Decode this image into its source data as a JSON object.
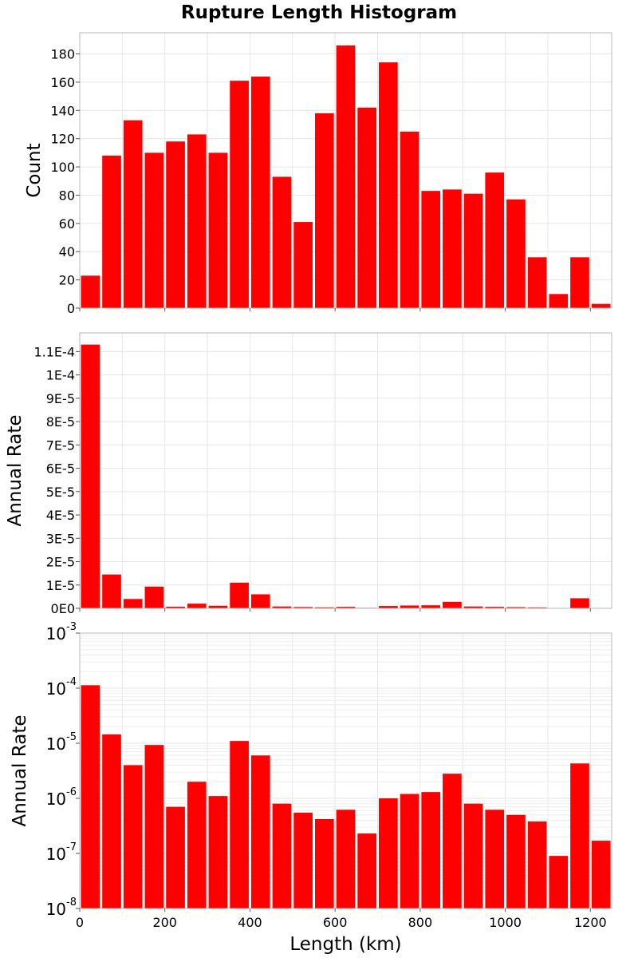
{
  "chart_data": [
    {
      "type": "bar",
      "title": "Rupture Length Histogram",
      "xlabel": "",
      "ylabel": "Count",
      "scale": "linear",
      "xlim": [
        0,
        1250
      ],
      "ylim": [
        0,
        195
      ],
      "bin_width": 50,
      "x": [
        25,
        75,
        125,
        175,
        225,
        275,
        325,
        375,
        425,
        475,
        525,
        575,
        625,
        675,
        725,
        775,
        825,
        875,
        925,
        975,
        1025,
        1075,
        1125,
        1175,
        1225
      ],
      "values": [
        23,
        108,
        133,
        110,
        118,
        123,
        110,
        161,
        164,
        93,
        61,
        138,
        186,
        142,
        174,
        125,
        83,
        84,
        81,
        96,
        77,
        36,
        10,
        36,
        3
      ],
      "color": "#ff0000",
      "y_ticks": [
        {
          "value": 0,
          "label": "0"
        },
        {
          "value": 20,
          "label": "20"
        },
        {
          "value": 40,
          "label": "40"
        },
        {
          "value": 60,
          "label": "60"
        },
        {
          "value": 80,
          "label": "80"
        },
        {
          "value": 100,
          "label": "100"
        },
        {
          "value": 120,
          "label": "120"
        },
        {
          "value": 140,
          "label": "140"
        },
        {
          "value": 160,
          "label": "160"
        },
        {
          "value": 180,
          "label": "180"
        }
      ]
    },
    {
      "type": "bar",
      "xlabel": "",
      "ylabel": "Annual Rate",
      "scale": "linear",
      "xlim": [
        0,
        1250
      ],
      "ylim": [
        0,
        0.000118
      ],
      "bin_width": 50,
      "x": [
        25,
        75,
        125,
        175,
        225,
        275,
        325,
        375,
        425,
        475,
        525,
        575,
        625,
        675,
        725,
        775,
        825,
        875,
        925,
        975,
        1025,
        1075,
        1125,
        1175,
        1225
      ],
      "values": [
        0.000113,
        1.45e-05,
        4e-06,
        9.3e-06,
        7e-07,
        2e-06,
        1.1e-06,
        1.1e-05,
        6e-06,
        8e-07,
        5.5e-07,
        4.2e-07,
        6.2e-07,
        2.3e-07,
        1e-06,
        1.2e-06,
        1.3e-06,
        2.8e-06,
        8e-07,
        6.2e-07,
        5e-07,
        3.8e-07,
        9e-08,
        4.3e-06,
        1.7e-07
      ],
      "color": "#ff0000",
      "y_ticks": [
        {
          "value": 0,
          "label": "0E0"
        },
        {
          "value": 1e-05,
          "label": "1E-5"
        },
        {
          "value": 2e-05,
          "label": "2E-5"
        },
        {
          "value": 3e-05,
          "label": "3E-5"
        },
        {
          "value": 4e-05,
          "label": "4E-5"
        },
        {
          "value": 5e-05,
          "label": "5E-5"
        },
        {
          "value": 6e-05,
          "label": "6E-5"
        },
        {
          "value": 7e-05,
          "label": "7E-5"
        },
        {
          "value": 8e-05,
          "label": "8E-5"
        },
        {
          "value": 9e-05,
          "label": "9E-5"
        },
        {
          "value": 0.0001,
          "label": "1E-4"
        },
        {
          "value": 0.00011,
          "label": "1.1E-4"
        }
      ]
    },
    {
      "type": "bar",
      "xlabel": "Length (km)",
      "ylabel": "Annual Rate",
      "scale": "log",
      "xlim": [
        0,
        1250
      ],
      "ylim_exp": [
        -8,
        -3
      ],
      "bin_width": 50,
      "x": [
        25,
        75,
        125,
        175,
        225,
        275,
        325,
        375,
        425,
        475,
        525,
        575,
        625,
        675,
        725,
        775,
        825,
        875,
        925,
        975,
        1025,
        1075,
        1125,
        1175,
        1225
      ],
      "values": [
        0.000113,
        1.45e-05,
        4e-06,
        9.3e-06,
        7e-07,
        2e-06,
        1.1e-06,
        1.1e-05,
        6e-06,
        8e-07,
        5.5e-07,
        4.2e-07,
        6.2e-07,
        2.3e-07,
        1e-06,
        1.2e-06,
        1.3e-06,
        2.8e-06,
        8e-07,
        6.2e-07,
        5e-07,
        3.8e-07,
        9e-08,
        4.3e-06,
        1.7e-07
      ],
      "color": "#ff0000",
      "y_ticks": [
        {
          "exp": -8,
          "base": "10",
          "sup": "-8"
        },
        {
          "exp": -7,
          "base": "10",
          "sup": "-7"
        },
        {
          "exp": -6,
          "base": "10",
          "sup": "-6"
        },
        {
          "exp": -5,
          "base": "10",
          "sup": "-5"
        },
        {
          "exp": -4,
          "base": "10",
          "sup": "-4"
        },
        {
          "exp": -3,
          "base": "10",
          "sup": "-3"
        }
      ],
      "x_ticks": [
        {
          "value": 0,
          "label": "0"
        },
        {
          "value": 200,
          "label": "200"
        },
        {
          "value": 400,
          "label": "400"
        },
        {
          "value": 600,
          "label": "600"
        },
        {
          "value": 800,
          "label": "800"
        },
        {
          "value": 1000,
          "label": "1000"
        },
        {
          "value": 1200,
          "label": "1200"
        }
      ]
    }
  ]
}
